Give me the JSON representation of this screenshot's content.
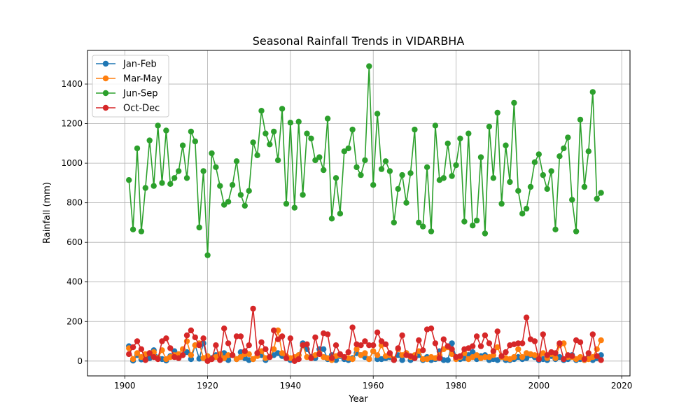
{
  "chart_data": {
    "type": "line",
    "title": "Seasonal Rainfall Trends in VIDARBHA",
    "xlabel": "Year",
    "ylabel": "Rainfall (mm)",
    "xlim": [
      1891,
      2022
    ],
    "ylim": [
      -75,
      1570
    ],
    "x_ticks": [
      1900,
      1920,
      1940,
      1960,
      1980,
      2000,
      2020
    ],
    "y_ticks": [
      0,
      200,
      400,
      600,
      800,
      1000,
      1200,
      1400
    ],
    "grid": true,
    "legend_position": "top-left",
    "x": [
      1901,
      1902,
      1903,
      1904,
      1905,
      1906,
      1907,
      1908,
      1909,
      1910,
      1911,
      1912,
      1913,
      1914,
      1915,
      1916,
      1917,
      1918,
      1919,
      1920,
      1921,
      1922,
      1923,
      1924,
      1925,
      1926,
      1927,
      1928,
      1929,
      1930,
      1931,
      1932,
      1933,
      1934,
      1935,
      1936,
      1937,
      1938,
      1939,
      1940,
      1941,
      1942,
      1943,
      1944,
      1945,
      1946,
      1947,
      1948,
      1949,
      1950,
      1951,
      1952,
      1953,
      1954,
      1955,
      1956,
      1957,
      1958,
      1959,
      1960,
      1961,
      1962,
      1963,
      1964,
      1965,
      1966,
      1967,
      1968,
      1969,
      1970,
      1971,
      1972,
      1973,
      1974,
      1975,
      1976,
      1977,
      1978,
      1979,
      1980,
      1981,
      1982,
      1983,
      1984,
      1985,
      1986,
      1987,
      1988,
      1989,
      1990,
      1991,
      1992,
      1993,
      1994,
      1995,
      1996,
      1997,
      1998,
      1999,
      2000,
      2001,
      2002,
      2003,
      2004,
      2005,
      2006,
      2007,
      2008,
      2009,
      2010,
      2011,
      2012,
      2013,
      2014,
      2015
    ],
    "series": [
      {
        "name": "Jan-Feb",
        "color": "#1f77b4",
        "values": [
          75,
          2,
          30,
          8,
          25,
          15,
          55,
          18,
          10,
          3,
          25,
          50,
          20,
          30,
          45,
          10,
          80,
          12,
          90,
          5,
          15,
          30,
          20,
          40,
          5,
          30,
          10,
          45,
          15,
          5,
          10,
          40,
          30,
          5,
          20,
          30,
          40,
          25,
          15,
          5,
          10,
          30,
          90,
          60,
          20,
          15,
          60,
          60,
          10,
          30,
          5,
          25,
          10,
          5,
          15,
          40,
          30,
          20,
          10,
          50,
          10,
          10,
          15,
          20,
          5,
          30,
          5,
          40,
          5,
          15,
          30,
          5,
          20,
          5,
          10,
          50,
          5,
          5,
          90,
          20,
          10,
          15,
          30,
          45,
          10,
          25,
          30,
          5,
          10,
          5,
          20,
          5,
          5,
          10,
          20,
          10,
          15,
          30,
          20,
          5,
          10,
          5,
          25,
          10,
          20,
          5,
          10,
          30,
          5,
          10,
          5,
          20,
          5,
          15,
          30
        ]
      },
      {
        "name": "Mar-May",
        "color": "#ff7f0e",
        "values": [
          65,
          10,
          40,
          20,
          35,
          40,
          45,
          15,
          55,
          10,
          20,
          30,
          35,
          60,
          100,
          30,
          80,
          90,
          15,
          25,
          10,
          20,
          35,
          15,
          30,
          30,
          10,
          20,
          35,
          35,
          10,
          25,
          50,
          15,
          20,
          60,
          155,
          40,
          25,
          15,
          20,
          30,
          80,
          20,
          15,
          30,
          40,
          20,
          15,
          5,
          25,
          30,
          20,
          15,
          10,
          60,
          30,
          40,
          10,
          50,
          30,
          80,
          25,
          30,
          10,
          60,
          30,
          40,
          20,
          30,
          50,
          10,
          10,
          20,
          15,
          30,
          60,
          70,
          35,
          10,
          20,
          40,
          10,
          20,
          30,
          15,
          20,
          20,
          30,
          70,
          20,
          15,
          10,
          20,
          60,
          20,
          40,
          35,
          30,
          25,
          40,
          15,
          35,
          15,
          80,
          90,
          20,
          20,
          10,
          20,
          5,
          10,
          20,
          60,
          105
        ]
      },
      {
        "name": "Jun-Sep",
        "color": "#2ca02c",
        "values": [
          915,
          665,
          1075,
          655,
          875,
          1115,
          885,
          1190,
          900,
          1165,
          895,
          925,
          960,
          1090,
          925,
          1160,
          1110,
          675,
          960,
          535,
          1050,
          980,
          885,
          790,
          805,
          890,
          1010,
          840,
          785,
          860,
          1105,
          1040,
          1265,
          1150,
          1095,
          1160,
          1015,
          1275,
          795,
          1205,
          775,
          1210,
          840,
          1150,
          1125,
          1015,
          1030,
          965,
          1225,
          720,
          925,
          745,
          1060,
          1075,
          1170,
          980,
          940,
          1015,
          1490,
          890,
          1250,
          970,
          1010,
          960,
          700,
          870,
          940,
          800,
          950,
          1170,
          700,
          680,
          980,
          655,
          1190,
          915,
          925,
          1100,
          935,
          990,
          1125,
          705,
          1150,
          685,
          710,
          1030,
          645,
          1185,
          925,
          1255,
          795,
          1090,
          905,
          1305,
          860,
          745,
          770,
          880,
          1005,
          1045,
          940,
          870,
          960,
          665,
          1035,
          1075,
          1130,
          815,
          655,
          1220,
          880,
          1060,
          1360,
          820,
          850
        ]
      },
      {
        "name": "Oct-Dec",
        "color": "#d62728",
        "values": [
          35,
          70,
          100,
          60,
          5,
          40,
          20,
          10,
          100,
          115,
          65,
          20,
          15,
          30,
          130,
          155,
          120,
          80,
          115,
          0,
          10,
          80,
          5,
          165,
          90,
          30,
          125,
          125,
          50,
          80,
          265,
          40,
          95,
          60,
          20,
          155,
          110,
          125,
          15,
          115,
          0,
          10,
          80,
          85,
          15,
          120,
          35,
          140,
          135,
          15,
          80,
          35,
          20,
          45,
          170,
          85,
          80,
          100,
          80,
          80,
          145,
          100,
          85,
          40,
          5,
          65,
          130,
          30,
          25,
          15,
          105,
          55,
          160,
          165,
          90,
          15,
          110,
          75,
          60,
          20,
          25,
          60,
          65,
          75,
          125,
          75,
          130,
          90,
          50,
          150,
          25,
          45,
          80,
          85,
          90,
          90,
          220,
          110,
          100,
          10,
          135,
          30,
          45,
          40,
          90,
          10,
          30,
          25,
          105,
          95,
          10,
          40,
          135,
          25,
          5
        ]
      }
    ]
  }
}
